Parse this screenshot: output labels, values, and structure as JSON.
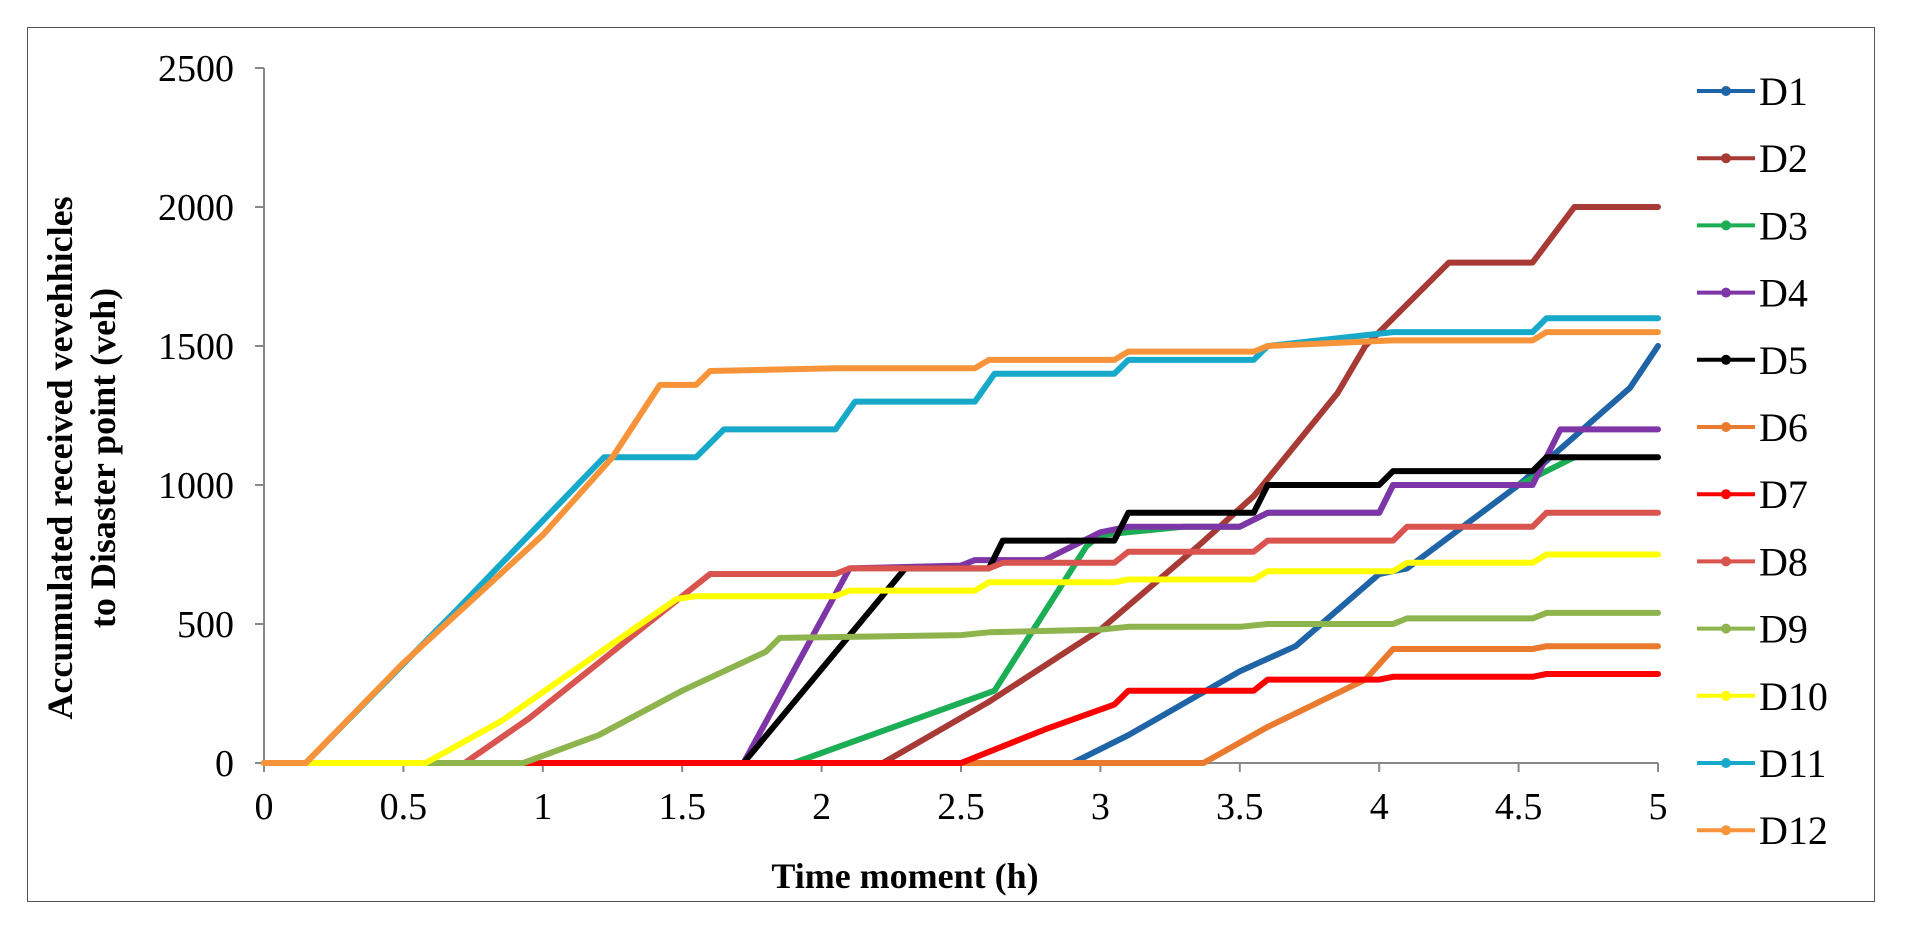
{
  "chart_data": {
    "type": "line",
    "title": "",
    "xlabel": "Time moment (h)",
    "ylabel_lines": [
      "Accumulated received vevehhicles",
      "to Disaster point (veh)"
    ],
    "xlim": [
      0,
      5
    ],
    "ylim": [
      0,
      2500
    ],
    "x_ticks": [
      0,
      0.5,
      1,
      1.5,
      2,
      2.5,
      3,
      3.5,
      4,
      4.5,
      5
    ],
    "x_tick_labels": [
      "0",
      "0.5",
      "1",
      "1.5",
      "2",
      "2.5",
      "3",
      "3.5",
      "4",
      "4.5",
      "5"
    ],
    "y_ticks": [
      0,
      500,
      1000,
      1500,
      2000,
      2500
    ],
    "y_tick_labels": [
      "0",
      "500",
      "1000",
      "1500",
      "2000",
      "2500"
    ],
    "grid": false,
    "legend_position": "right",
    "series": [
      {
        "name": "D1",
        "color": "#1F64A6",
        "points": [
          [
            0,
            0
          ],
          [
            2.9,
            0
          ],
          [
            3.1,
            100
          ],
          [
            3.5,
            330
          ],
          [
            3.7,
            420
          ],
          [
            4.0,
            680
          ],
          [
            4.1,
            700
          ],
          [
            4.5,
            1000
          ],
          [
            4.65,
            1130
          ],
          [
            4.9,
            1350
          ],
          [
            5.0,
            1500
          ]
        ]
      },
      {
        "name": "D2",
        "color": "#A83A36",
        "points": [
          [
            0,
            0
          ],
          [
            2.22,
            0
          ],
          [
            2.6,
            220
          ],
          [
            3.0,
            480
          ],
          [
            3.35,
            780
          ],
          [
            3.55,
            960
          ],
          [
            3.85,
            1330
          ],
          [
            3.95,
            1500
          ],
          [
            4.25,
            1800
          ],
          [
            4.55,
            1800
          ],
          [
            4.7,
            2000
          ],
          [
            5.0,
            2000
          ]
        ]
      },
      {
        "name": "D3",
        "color": "#1BAE54",
        "points": [
          [
            0,
            0
          ],
          [
            1.9,
            0
          ],
          [
            2.62,
            260
          ],
          [
            2.95,
            780
          ],
          [
            3.0,
            820
          ],
          [
            3.3,
            850
          ],
          [
            3.5,
            850
          ],
          [
            3.6,
            900
          ],
          [
            4.0,
            900
          ],
          [
            4.05,
            1000
          ],
          [
            4.5,
            1000
          ],
          [
            4.7,
            1100
          ]
        ]
      },
      {
        "name": "D4",
        "color": "#7E35A8",
        "points": [
          [
            0,
            0
          ],
          [
            1.72,
            0
          ],
          [
            2.1,
            700
          ],
          [
            2.5,
            710
          ],
          [
            2.55,
            730
          ],
          [
            2.8,
            730
          ],
          [
            3.0,
            830
          ],
          [
            3.1,
            850
          ],
          [
            3.5,
            850
          ],
          [
            3.6,
            900
          ],
          [
            4.0,
            900
          ],
          [
            4.05,
            1000
          ],
          [
            4.55,
            1000
          ],
          [
            4.65,
            1200
          ],
          [
            5.0,
            1200
          ]
        ]
      },
      {
        "name": "D5",
        "color": "#000000",
        "points": [
          [
            0,
            0
          ],
          [
            1.72,
            0
          ],
          [
            2.3,
            700
          ],
          [
            2.6,
            700
          ],
          [
            2.65,
            800
          ],
          [
            3.05,
            800
          ],
          [
            3.1,
            900
          ],
          [
            3.55,
            900
          ],
          [
            3.6,
            1000
          ],
          [
            4.0,
            1000
          ],
          [
            4.05,
            1050
          ],
          [
            4.55,
            1050
          ],
          [
            4.6,
            1100
          ],
          [
            5.0,
            1100
          ]
        ]
      },
      {
        "name": "D6",
        "color": "#E97A2E",
        "points": [
          [
            0,
            0
          ],
          [
            3.37,
            0
          ],
          [
            3.6,
            130
          ],
          [
            3.95,
            300
          ],
          [
            4.05,
            410
          ],
          [
            4.55,
            410
          ],
          [
            4.6,
            420
          ],
          [
            5.0,
            420
          ]
        ]
      },
      {
        "name": "D7",
        "color": "#FF0000",
        "points": [
          [
            0,
            0
          ],
          [
            2.5,
            0
          ],
          [
            2.8,
            120
          ],
          [
            3.05,
            210
          ],
          [
            3.1,
            260
          ],
          [
            3.55,
            260
          ],
          [
            3.6,
            300
          ],
          [
            4.0,
            300
          ],
          [
            4.05,
            310
          ],
          [
            4.55,
            310
          ],
          [
            4.6,
            320
          ],
          [
            5.0,
            320
          ]
        ]
      },
      {
        "name": "D8",
        "color": "#D9534F",
        "points": [
          [
            0,
            0
          ],
          [
            0.72,
            0
          ],
          [
            0.95,
            160
          ],
          [
            1.5,
            600
          ],
          [
            1.6,
            680
          ],
          [
            2.05,
            680
          ],
          [
            2.1,
            700
          ],
          [
            2.6,
            700
          ],
          [
            2.65,
            720
          ],
          [
            3.05,
            720
          ],
          [
            3.1,
            760
          ],
          [
            3.55,
            760
          ],
          [
            3.6,
            800
          ],
          [
            4.05,
            800
          ],
          [
            4.1,
            850
          ],
          [
            4.55,
            850
          ],
          [
            4.6,
            900
          ],
          [
            5.0,
            900
          ]
        ]
      },
      {
        "name": "D9",
        "color": "#8DB44D",
        "points": [
          [
            0,
            0
          ],
          [
            0.93,
            0
          ],
          [
            1.2,
            100
          ],
          [
            1.5,
            260
          ],
          [
            1.8,
            400
          ],
          [
            1.85,
            450
          ],
          [
            2.5,
            460
          ],
          [
            2.6,
            470
          ],
          [
            3.0,
            480
          ],
          [
            3.1,
            490
          ],
          [
            3.5,
            490
          ],
          [
            3.6,
            500
          ],
          [
            4.05,
            500
          ],
          [
            4.1,
            520
          ],
          [
            4.55,
            520
          ],
          [
            4.6,
            540
          ],
          [
            5.0,
            540
          ]
        ]
      },
      {
        "name": "D10",
        "color": "#FFFF00",
        "points": [
          [
            0,
            0
          ],
          [
            0.58,
            0
          ],
          [
            0.85,
            150
          ],
          [
            1.48,
            590
          ],
          [
            1.55,
            600
          ],
          [
            2.05,
            600
          ],
          [
            2.1,
            620
          ],
          [
            2.55,
            620
          ],
          [
            2.6,
            650
          ],
          [
            3.05,
            650
          ],
          [
            3.1,
            660
          ],
          [
            3.55,
            660
          ],
          [
            3.6,
            690
          ],
          [
            4.05,
            690
          ],
          [
            4.1,
            720
          ],
          [
            4.55,
            720
          ],
          [
            4.6,
            750
          ],
          [
            5.0,
            750
          ]
        ]
      },
      {
        "name": "D11",
        "color": "#17A9C9",
        "points": [
          [
            0,
            0
          ],
          [
            0.15,
            0
          ],
          [
            0.7,
            560
          ],
          [
            1.22,
            1100
          ],
          [
            1.55,
            1100
          ],
          [
            1.65,
            1200
          ],
          [
            2.05,
            1200
          ],
          [
            2.12,
            1300
          ],
          [
            2.55,
            1300
          ],
          [
            2.62,
            1400
          ],
          [
            3.05,
            1400
          ],
          [
            3.1,
            1450
          ],
          [
            3.55,
            1450
          ],
          [
            3.6,
            1500
          ],
          [
            4.05,
            1550
          ],
          [
            4.55,
            1550
          ],
          [
            4.6,
            1600
          ],
          [
            5.0,
            1600
          ]
        ]
      },
      {
        "name": "D12",
        "color": "#F7943A",
        "points": [
          [
            0,
            0
          ],
          [
            0.15,
            0
          ],
          [
            0.5,
            360
          ],
          [
            1.0,
            820
          ],
          [
            1.25,
            1100
          ],
          [
            1.42,
            1360
          ],
          [
            1.55,
            1360
          ],
          [
            1.6,
            1410
          ],
          [
            2.05,
            1420
          ],
          [
            2.55,
            1420
          ],
          [
            2.6,
            1450
          ],
          [
            3.05,
            1450
          ],
          [
            3.1,
            1480
          ],
          [
            3.55,
            1480
          ],
          [
            3.6,
            1500
          ],
          [
            4.05,
            1520
          ],
          [
            4.55,
            1520
          ],
          [
            4.6,
            1550
          ],
          [
            5.0,
            1550
          ]
        ]
      }
    ]
  }
}
